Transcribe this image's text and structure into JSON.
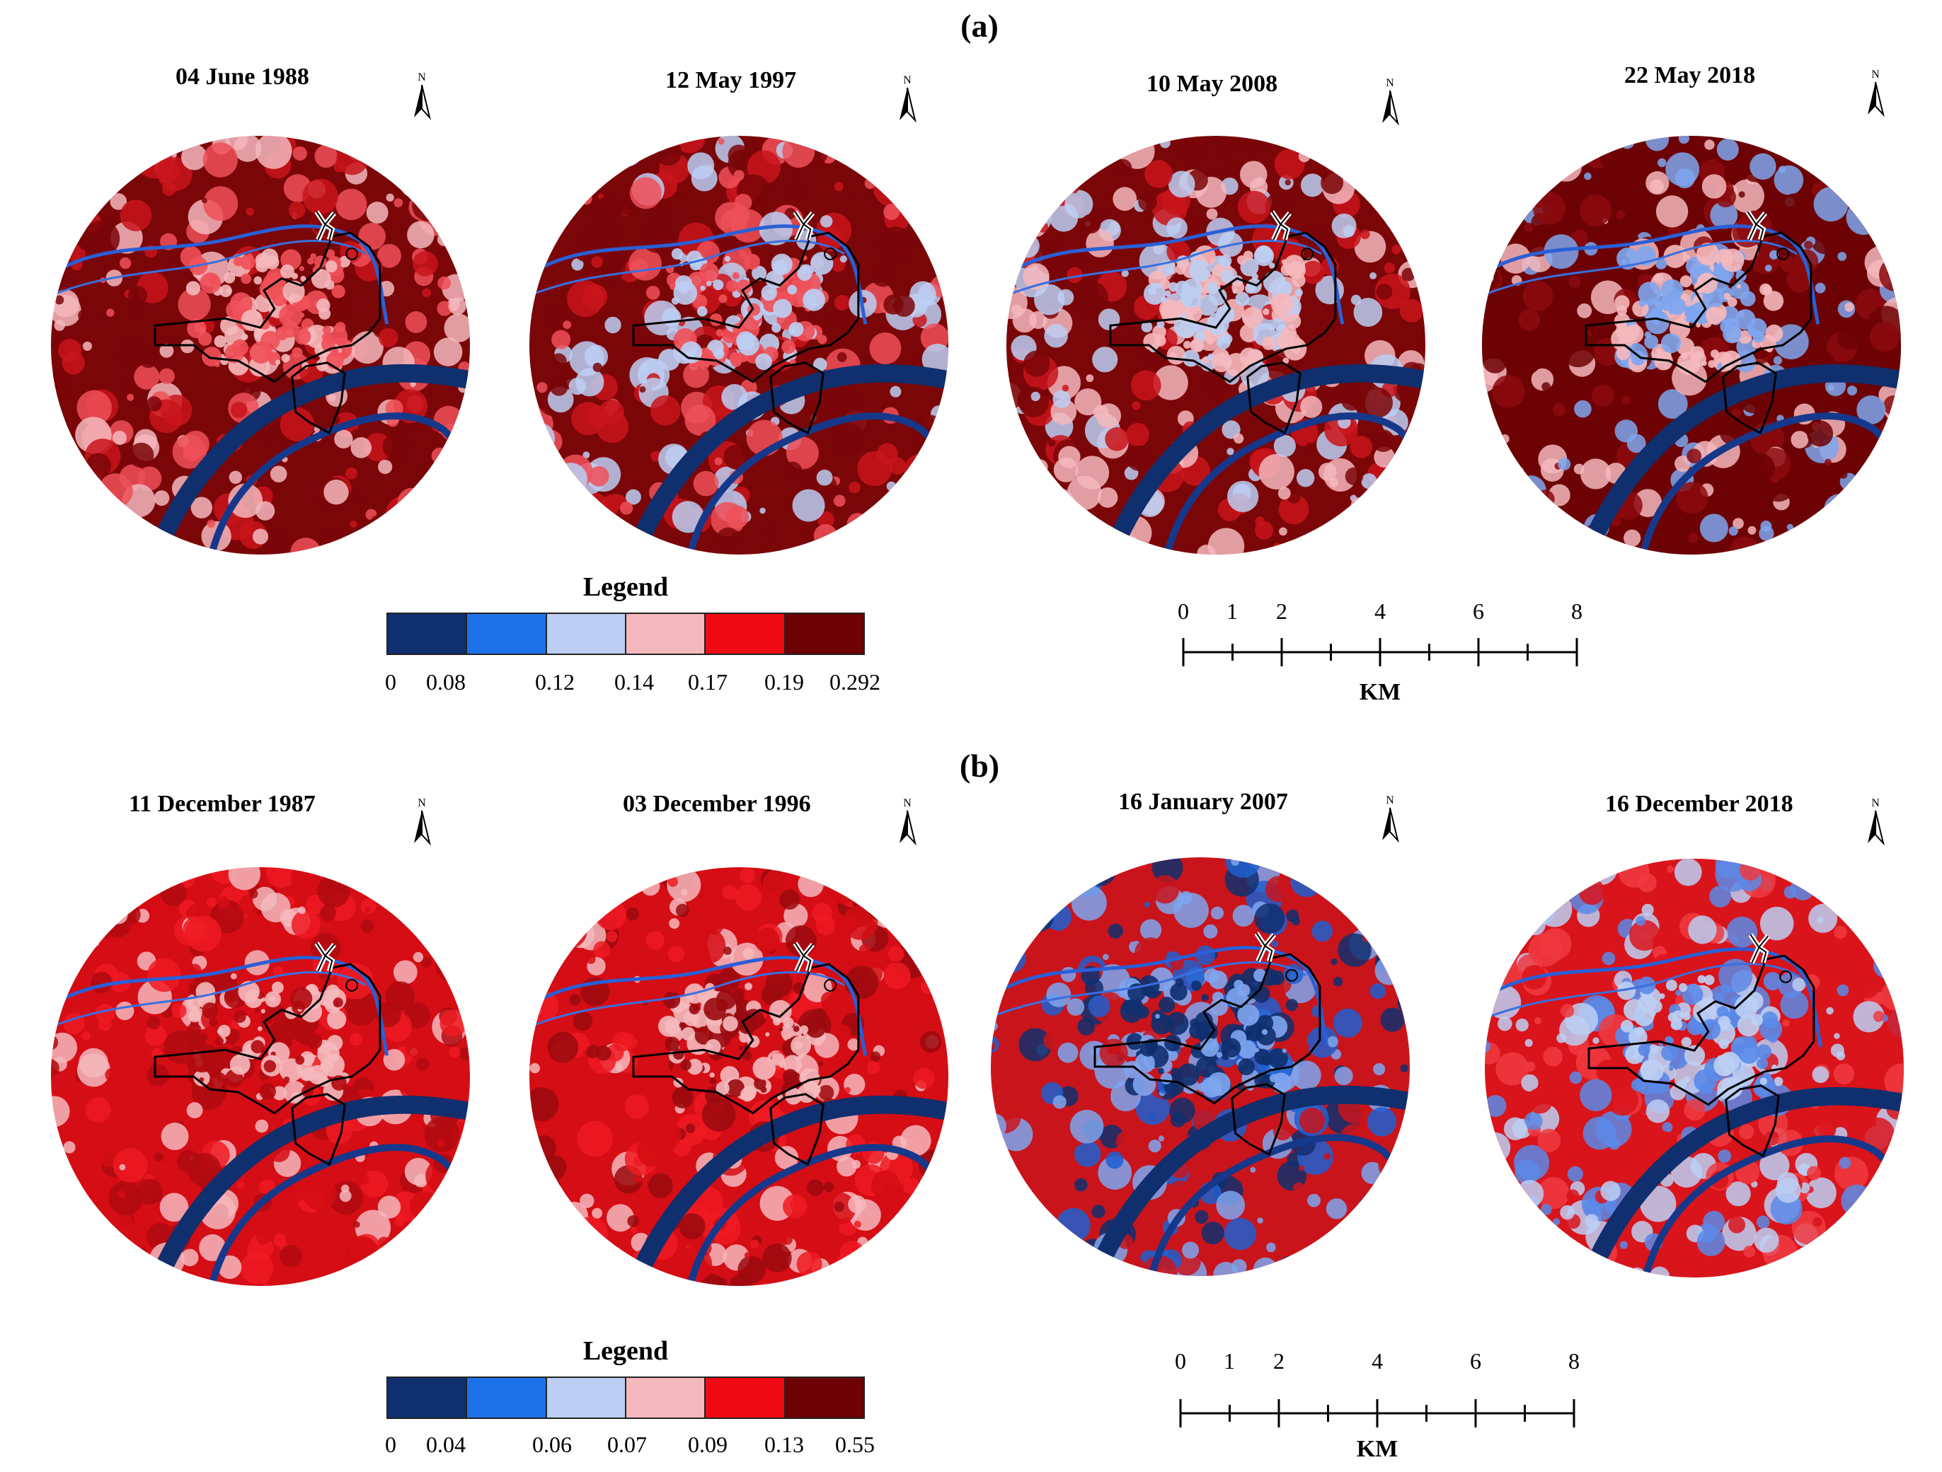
{
  "figure": {
    "panel_a": {
      "label": "(a)",
      "maps": [
        {
          "date": "04 June 1988"
        },
        {
          "date": "12 May 1997"
        },
        {
          "date": "10 May 2008"
        },
        {
          "date": "22 May 2018"
        }
      ],
      "legend": {
        "title": "Legend",
        "colors": [
          "#0f2f6e",
          "#1d72e8",
          "#bccff3",
          "#f5b9bd",
          "#ee0b14",
          "#6d0204"
        ],
        "ticks": [
          "0",
          "0.08",
          "0.12",
          "0.14",
          "0.17",
          "0.19",
          "0.292"
        ]
      },
      "scale_bar": {
        "labels": [
          "0",
          "1",
          "2",
          "4",
          "6",
          "8"
        ],
        "unit": "KM"
      }
    },
    "panel_b": {
      "label": "(b)",
      "maps": [
        {
          "date": "11 December 1987"
        },
        {
          "date": "03 December 1996"
        },
        {
          "date": "16 January 2007"
        },
        {
          "date": "16 December 2018"
        }
      ],
      "legend": {
        "title": "Legend",
        "colors": [
          "#0f2f6e",
          "#1d72e8",
          "#bccff3",
          "#f5b9bd",
          "#ee0b14",
          "#6d0204"
        ],
        "ticks": [
          "0",
          "0.04",
          "0.06",
          "0.07",
          "0.09",
          "0.13",
          "0.55"
        ]
      },
      "scale_bar": {
        "labels": [
          "0",
          "1",
          "2",
          "4",
          "6",
          "8"
        ],
        "unit": "KM"
      }
    },
    "north_arrow": {
      "label": "N",
      "icon": "north-arrow-icon"
    },
    "map_palettes": [
      [
        "#7a0608",
        "#c9141b",
        "#ef5058",
        "#f5b9bd"
      ],
      [
        "#7a0608",
        "#c9141b",
        "#ef5058",
        "#bccff3"
      ],
      [
        "#7a0608",
        "#c9141b",
        "#f5b9bd",
        "#bccff3"
      ],
      [
        "#6d0204",
        "#8c0a0e",
        "#f5b9bd",
        "#7ea6ef"
      ],
      [
        "#d50d14",
        "#ee1a22",
        "#b00a10",
        "#f5b9bd"
      ],
      [
        "#d50d14",
        "#ee1a22",
        "#9a0a0e",
        "#f5b9bd"
      ],
      [
        "#c9141b",
        "#1d5fd0",
        "#0f2f6e",
        "#7ea6ef"
      ],
      [
        "#d9141b",
        "#ee3a40",
        "#5a8ae8",
        "#bccff3"
      ]
    ]
  }
}
